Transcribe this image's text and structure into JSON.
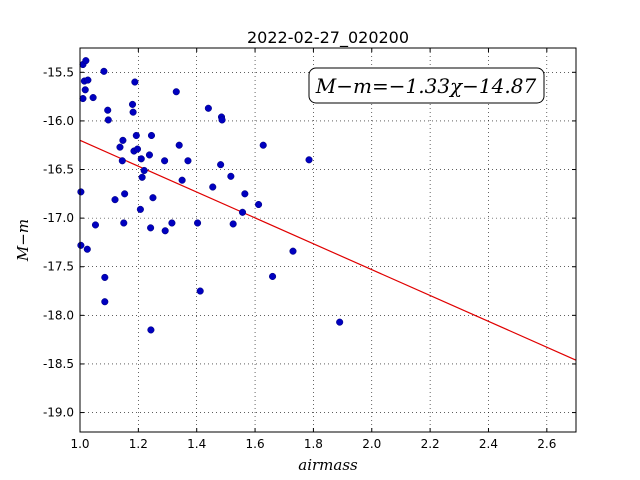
{
  "chart_data": {
    "type": "scatter",
    "title": "2022-02-27_020200",
    "xlabel": "airmass",
    "ylabel": "M−m",
    "xlim": [
      1.0,
      2.7
    ],
    "ylim": [
      -19.2,
      -15.25
    ],
    "y_inverted": true,
    "grid": true,
    "x_ticks": [
      "1.0",
      "1.2",
      "1.4",
      "1.6",
      "1.8",
      "2.0",
      "2.2",
      "2.4",
      "2.6"
    ],
    "y_ticks": [
      "-15.5",
      "-16.0",
      "-16.5",
      "-17.0",
      "-17.5",
      "-18.0",
      "-18.5",
      "-19.0"
    ],
    "annotation": "M−m=−1.33χ−14.87",
    "series": [
      {
        "marker": "circle",
        "color": "#0000bf",
        "points": [
          [
            1.003,
            -16.73
          ],
          [
            1.003,
            -17.28
          ],
          [
            1.01,
            -15.42
          ],
          [
            1.01,
            -15.77
          ],
          [
            1.015,
            -15.59
          ],
          [
            1.018,
            -15.68
          ],
          [
            1.02,
            -15.38
          ],
          [
            1.025,
            -17.32
          ],
          [
            1.027,
            -15.58
          ],
          [
            1.045,
            -15.76
          ],
          [
            1.053,
            -17.07
          ],
          [
            1.082,
            -15.49
          ],
          [
            1.085,
            -17.61
          ],
          [
            1.085,
            -17.86
          ],
          [
            1.095,
            -15.89
          ],
          [
            1.097,
            -15.99
          ],
          [
            1.12,
            -16.81
          ],
          [
            1.137,
            -16.27
          ],
          [
            1.145,
            -16.41
          ],
          [
            1.147,
            -16.2
          ],
          [
            1.15,
            -17.05
          ],
          [
            1.153,
            -16.75
          ],
          [
            1.18,
            -15.83
          ],
          [
            1.182,
            -15.91
          ],
          [
            1.185,
            -16.31
          ],
          [
            1.188,
            -15.6
          ],
          [
            1.193,
            -16.15
          ],
          [
            1.197,
            -16.29
          ],
          [
            1.207,
            -16.91
          ],
          [
            1.21,
            -16.39
          ],
          [
            1.213,
            -16.58
          ],
          [
            1.22,
            -16.51
          ],
          [
            1.238,
            -16.35
          ],
          [
            1.242,
            -17.1
          ],
          [
            1.243,
            -18.15
          ],
          [
            1.245,
            -16.15
          ],
          [
            1.25,
            -16.79
          ],
          [
            1.29,
            -16.41
          ],
          [
            1.292,
            -17.13
          ],
          [
            1.315,
            -17.05
          ],
          [
            1.33,
            -15.7
          ],
          [
            1.34,
            -16.25
          ],
          [
            1.35,
            -16.61
          ],
          [
            1.37,
            -16.41
          ],
          [
            1.403,
            -17.05
          ],
          [
            1.412,
            -17.75
          ],
          [
            1.44,
            -15.87
          ],
          [
            1.455,
            -16.68
          ],
          [
            1.482,
            -16.45
          ],
          [
            1.485,
            -15.96
          ],
          [
            1.487,
            -15.99
          ],
          [
            1.517,
            -16.57
          ],
          [
            1.525,
            -17.06
          ],
          [
            1.557,
            -16.94
          ],
          [
            1.565,
            -16.75
          ],
          [
            1.612,
            -16.86
          ],
          [
            1.628,
            -16.25
          ],
          [
            1.66,
            -17.6
          ],
          [
            1.73,
            -17.34
          ],
          [
            1.785,
            -16.4
          ],
          [
            1.89,
            -18.07
          ]
        ]
      }
    ],
    "fit_line": {
      "color": "#e00000",
      "slope": -1.33,
      "intercept": -14.87
    }
  }
}
